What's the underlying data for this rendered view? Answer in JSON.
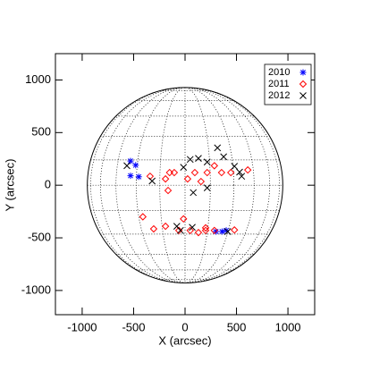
{
  "chart_data": {
    "type": "scatter",
    "xlabel": "X (arcsec)",
    "ylabel": "Y (arcsec)",
    "xlim": [
      -1260,
      1260
    ],
    "ylim": [
      -1230,
      1250
    ],
    "xticks": [
      -1000,
      -500,
      0,
      500,
      1000
    ],
    "yticks": [
      -1000,
      -500,
      0,
      500,
      1000
    ],
    "legend": "upper right",
    "series": [
      {
        "name": "2010",
        "color": "#0000ff",
        "marker": "asterisk",
        "x": [
          -530,
          -480,
          -530,
          -450,
          300,
          360,
          400
        ],
        "values": [
          230,
          190,
          90,
          80,
          -440,
          -440,
          -430
        ]
      },
      {
        "name": "2011",
        "color": "#ff0000",
        "marker": "diamond",
        "x": [
          -340,
          -190,
          -165,
          -150,
          -105,
          25,
          95,
          155,
          215,
          285,
          355,
          445,
          610,
          -410,
          -305,
          -190,
          -60,
          -15,
          50,
          130,
          200,
          285,
          480,
          200
        ],
        "values": [
          85,
          60,
          -50,
          120,
          120,
          60,
          120,
          35,
          120,
          185,
          120,
          120,
          145,
          -300,
          -415,
          -390,
          -430,
          -320,
          -430,
          -450,
          -430,
          -430,
          -425,
          -405
        ]
      },
      {
        "name": "2012",
        "color": "#000000",
        "marker": "x",
        "x": [
          -565,
          -320,
          -15,
          50,
          130,
          215,
          315,
          375,
          480,
          550,
          80,
          215,
          -45,
          -80,
          70,
          415,
          530
        ],
        "values": [
          185,
          40,
          170,
          245,
          255,
          220,
          355,
          270,
          180,
          85,
          -70,
          -25,
          -430,
          -390,
          -400,
          -440,
          125
        ]
      }
    ]
  }
}
